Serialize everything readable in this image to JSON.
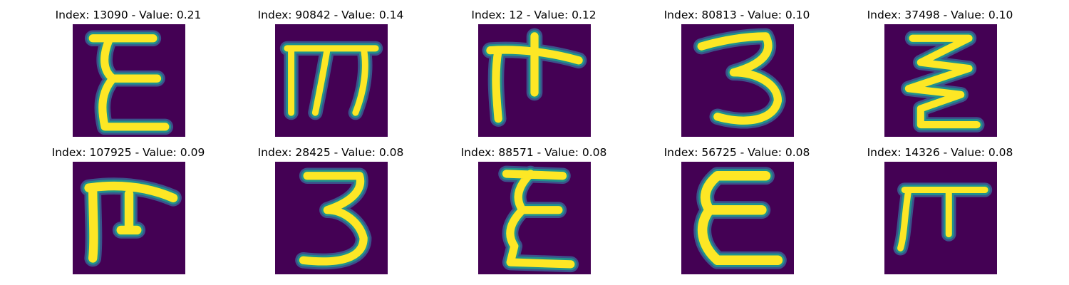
{
  "colors": {
    "background": "#440154",
    "outer_halo": "#3b528b",
    "mid_halo": "#21918c",
    "stroke": "#fde725"
  },
  "grid": {
    "rows": 2,
    "columns": 5
  },
  "samples": [
    {
      "title": "Index: 13090 - Value: 0.21",
      "glyph": "epsilon-like"
    },
    {
      "title": "Index: 90842 - Value: 0.14",
      "glyph": "m-like"
    },
    {
      "title": "Index: 12 - Value: 0.12",
      "glyph": "tau-like"
    },
    {
      "title": "Index: 80813 - Value: 0.10",
      "glyph": "three-like"
    },
    {
      "title": "Index: 37498 - Value: 0.10",
      "glyph": "zigzag-like"
    },
    {
      "title": "Index: 107925 - Value: 0.09",
      "glyph": "tau-like"
    },
    {
      "title": "Index: 28425 - Value: 0.08",
      "glyph": "three-like"
    },
    {
      "title": "Index: 88571 - Value: 0.08",
      "glyph": "epsilon-like"
    },
    {
      "title": "Index: 56725 - Value: 0.08",
      "glyph": "epsilon-like"
    },
    {
      "title": "Index: 14326 - Value: 0.08",
      "glyph": "pi-like"
    }
  ]
}
